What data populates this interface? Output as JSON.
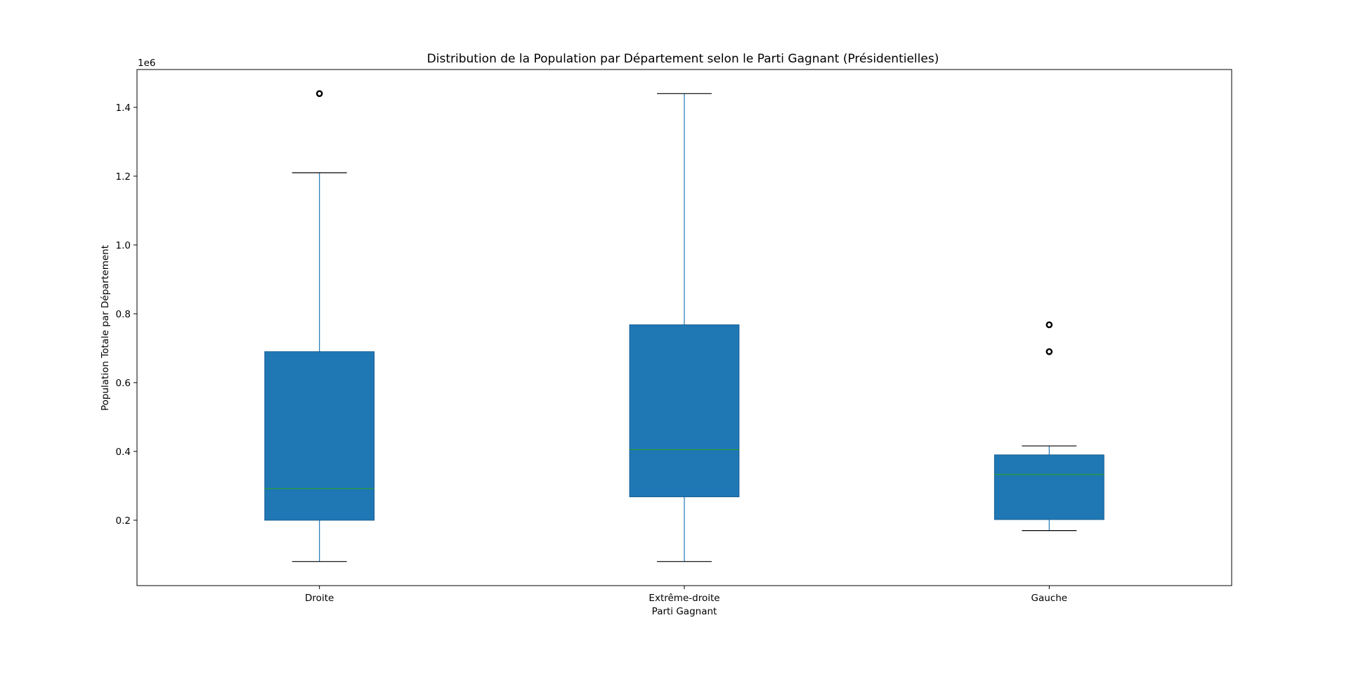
{
  "chart_data": {
    "type": "boxplot",
    "title": "Distribution de la Population par Département selon le Parti Gagnant (Présidentielles)",
    "xlabel": "Parti Gagnant",
    "ylabel": "Population Totale par Département",
    "y_offset_label": "1e6",
    "y_scale": 1000000,
    "ylim": [
      10000,
      1510000
    ],
    "yticks": [
      200000,
      400000,
      600000,
      800000,
      1000000,
      1200000,
      1400000
    ],
    "ytick_labels": [
      "0.2",
      "0.4",
      "0.6",
      "0.8",
      "1.0",
      "1.2",
      "1.4"
    ],
    "categories": [
      "Droite",
      "Extrême-droite",
      "Gauche"
    ],
    "boxes": [
      {
        "category": "Droite",
        "whisker_low": 80000,
        "q1": 200000,
        "median": 292000,
        "q3": 690000,
        "whisker_high": 1210000,
        "outliers": [
          1440000
        ]
      },
      {
        "category": "Extrême-droite",
        "whisker_low": 80000,
        "q1": 268000,
        "median": 405000,
        "q3": 768000,
        "whisker_high": 1440000,
        "outliers": []
      },
      {
        "category": "Gauche",
        "whisker_low": 170000,
        "q1": 202000,
        "median": 333000,
        "q3": 390000,
        "whisker_high": 416000,
        "outliers": [
          768000,
          690000
        ]
      }
    ],
    "grid": false,
    "legend": "none",
    "colors": {
      "box_fill": "#1f77b4",
      "whisker": "#1f77b4",
      "cap": "#000000",
      "median": "#2ca02c",
      "outlier_edge": "#000000"
    }
  }
}
